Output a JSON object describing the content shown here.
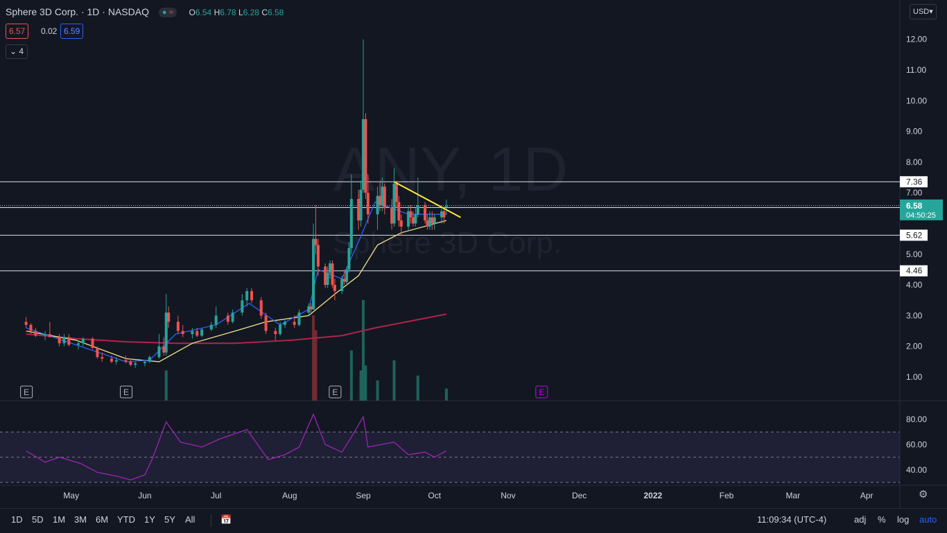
{
  "header": {
    "symbol_title": "Sphere 3D Corp. · 1D · NASDAQ",
    "ohlc": {
      "o_label": "O",
      "o": "6.54",
      "h_label": "H",
      "h": "6.78",
      "l_label": "L",
      "l": "6.28",
      "c_label": "C",
      "c": "6.58"
    },
    "bid": "6.57",
    "spread": "0.02",
    "ask": "6.59",
    "indicators_count": "4",
    "currency": "USD"
  },
  "watermark": {
    "ticker": "ANY, 1D",
    "name": "Sphere 3D Corp."
  },
  "colors": {
    "bg": "#131722",
    "up": "#26a69a",
    "down": "#ef5350",
    "ema_fast": "#2962ff",
    "ema_slow": "#f3e58a",
    "sma": "#b5224c",
    "trend": "#ffeb3b",
    "rsi": "#9c27b0",
    "earn": "#c400ff"
  },
  "chart_data": {
    "type": "candlestick",
    "y_axis_ticks": [
      "12.00",
      "11.00",
      "10.00",
      "9.00",
      "8.00",
      "7.00",
      "5.00",
      "4.00",
      "3.00",
      "2.00",
      "1.00"
    ],
    "x_axis_ticks": [
      "May",
      "Jun",
      "Jul",
      "Aug",
      "Sep",
      "Oct",
      "Nov",
      "Dec",
      "2022",
      "Feb",
      "Mar",
      "Apr"
    ],
    "ylim": [
      0,
      13
    ],
    "horizontal_levels": [
      {
        "value": 7.36,
        "label": "7.36"
      },
      {
        "value": 6.52,
        "label": "6.52"
      },
      {
        "value": 5.62,
        "label": "5.62"
      },
      {
        "value": 4.46,
        "label": "4.46"
      }
    ],
    "last_price": {
      "value": 6.58,
      "label": "6.58",
      "countdown": "04:50:25"
    },
    "trendline": {
      "start": {
        "date": "2021-09-14",
        "value": 7.36
      },
      "end": {
        "date": "2021-10-12",
        "value": 6.2
      }
    },
    "candles": [
      {
        "date": "2021-04-12",
        "o": 2.8,
        "h": 2.95,
        "l": 2.6,
        "c": 2.7
      },
      {
        "date": "2021-04-14",
        "o": 2.7,
        "h": 2.75,
        "l": 2.4,
        "c": 2.5
      },
      {
        "date": "2021-04-16",
        "o": 2.5,
        "h": 2.6,
        "l": 2.3,
        "c": 2.35
      },
      {
        "date": "2021-04-20",
        "o": 2.35,
        "h": 2.5,
        "l": 2.2,
        "c": 2.4
      },
      {
        "date": "2021-04-22",
        "o": 2.4,
        "h": 2.8,
        "l": 2.3,
        "c": 2.3
      },
      {
        "date": "2021-04-26",
        "o": 2.3,
        "h": 2.4,
        "l": 2.0,
        "c": 2.1
      },
      {
        "date": "2021-04-28",
        "o": 2.1,
        "h": 2.4,
        "l": 2.0,
        "c": 2.3
      },
      {
        "date": "2021-04-30",
        "o": 2.3,
        "h": 2.4,
        "l": 2.0,
        "c": 2.05
      },
      {
        "date": "2021-05-04",
        "o": 2.05,
        "h": 2.2,
        "l": 1.9,
        "c": 2.1
      },
      {
        "date": "2021-05-06",
        "o": 2.1,
        "h": 2.3,
        "l": 2.0,
        "c": 2.25
      },
      {
        "date": "2021-05-10",
        "o": 2.25,
        "h": 2.3,
        "l": 1.9,
        "c": 1.95
      },
      {
        "date": "2021-05-12",
        "o": 1.95,
        "h": 2.0,
        "l": 1.6,
        "c": 1.65
      },
      {
        "date": "2021-05-14",
        "o": 1.65,
        "h": 1.8,
        "l": 1.5,
        "c": 1.6
      },
      {
        "date": "2021-05-18",
        "o": 1.6,
        "h": 1.7,
        "l": 1.45,
        "c": 1.5
      },
      {
        "date": "2021-05-20",
        "o": 1.5,
        "h": 1.65,
        "l": 1.4,
        "c": 1.55
      },
      {
        "date": "2021-05-24",
        "o": 1.55,
        "h": 1.7,
        "l": 1.45,
        "c": 1.5
      },
      {
        "date": "2021-05-26",
        "o": 1.5,
        "h": 1.6,
        "l": 1.35,
        "c": 1.4
      },
      {
        "date": "2021-05-28",
        "o": 1.4,
        "h": 1.5,
        "l": 1.3,
        "c": 1.45
      },
      {
        "date": "2021-06-01",
        "o": 1.45,
        "h": 1.55,
        "l": 1.35,
        "c": 1.5
      },
      {
        "date": "2021-06-03",
        "o": 1.5,
        "h": 1.7,
        "l": 1.45,
        "c": 1.65
      },
      {
        "date": "2021-06-07",
        "o": 1.65,
        "h": 2.4,
        "l": 1.6,
        "c": 2.0
      },
      {
        "date": "2021-06-09",
        "o": 2.0,
        "h": 2.3,
        "l": 1.7,
        "c": 1.8
      },
      {
        "date": "2021-06-10",
        "o": 1.8,
        "h": 3.7,
        "l": 1.7,
        "c": 3.1
      },
      {
        "date": "2021-06-11",
        "o": 3.1,
        "h": 3.3,
        "l": 2.6,
        "c": 2.8
      },
      {
        "date": "2021-06-15",
        "o": 2.8,
        "h": 3.0,
        "l": 2.4,
        "c": 2.5
      },
      {
        "date": "2021-06-17",
        "o": 2.5,
        "h": 2.7,
        "l": 2.3,
        "c": 2.4
      },
      {
        "date": "2021-06-21",
        "o": 2.4,
        "h": 2.6,
        "l": 2.25,
        "c": 2.5
      },
      {
        "date": "2021-06-23",
        "o": 2.5,
        "h": 2.6,
        "l": 2.3,
        "c": 2.35
      },
      {
        "date": "2021-06-25",
        "o": 2.35,
        "h": 2.6,
        "l": 2.3,
        "c": 2.55
      },
      {
        "date": "2021-06-29",
        "o": 2.55,
        "h": 2.8,
        "l": 2.5,
        "c": 2.7
      },
      {
        "date": "2021-07-01",
        "o": 2.7,
        "h": 3.3,
        "l": 2.6,
        "c": 3.0
      },
      {
        "date": "2021-07-06",
        "o": 3.0,
        "h": 3.1,
        "l": 2.7,
        "c": 2.8
      },
      {
        "date": "2021-07-08",
        "o": 2.8,
        "h": 3.2,
        "l": 2.75,
        "c": 3.1
      },
      {
        "date": "2021-07-12",
        "o": 3.1,
        "h": 3.7,
        "l": 3.0,
        "c": 3.5
      },
      {
        "date": "2021-07-14",
        "o": 3.5,
        "h": 3.9,
        "l": 3.3,
        "c": 3.8
      },
      {
        "date": "2021-07-16",
        "o": 3.8,
        "h": 3.9,
        "l": 3.4,
        "c": 3.5
      },
      {
        "date": "2021-07-20",
        "o": 3.5,
        "h": 3.6,
        "l": 2.9,
        "c": 3.0
      },
      {
        "date": "2021-07-22",
        "o": 3.0,
        "h": 3.1,
        "l": 2.4,
        "c": 2.5
      },
      {
        "date": "2021-07-26",
        "o": 2.5,
        "h": 2.6,
        "l": 2.2,
        "c": 2.4
      },
      {
        "date": "2021-07-28",
        "o": 2.4,
        "h": 2.8,
        "l": 2.35,
        "c": 2.7
      },
      {
        "date": "2021-07-30",
        "o": 2.7,
        "h": 2.9,
        "l": 2.6,
        "c": 2.8
      },
      {
        "date": "2021-08-03",
        "o": 2.8,
        "h": 3.0,
        "l": 2.6,
        "c": 2.7
      },
      {
        "date": "2021-08-05",
        "o": 2.7,
        "h": 3.2,
        "l": 2.65,
        "c": 3.1
      },
      {
        "date": "2021-08-09",
        "o": 3.1,
        "h": 3.4,
        "l": 3.0,
        "c": 3.3
      },
      {
        "date": "2021-08-10",
        "o": 3.3,
        "h": 3.4,
        "l": 3.1,
        "c": 3.2
      },
      {
        "date": "2021-08-11",
        "o": 3.2,
        "h": 6.0,
        "l": 3.2,
        "c": 5.5
      },
      {
        "date": "2021-08-12",
        "o": 5.5,
        "h": 6.6,
        "l": 5.0,
        "c": 5.3
      },
      {
        "date": "2021-08-13",
        "o": 5.3,
        "h": 5.5,
        "l": 4.3,
        "c": 4.6
      },
      {
        "date": "2021-08-16",
        "o": 4.6,
        "h": 4.7,
        "l": 3.9,
        "c": 4.0
      },
      {
        "date": "2021-08-17",
        "o": 4.0,
        "h": 4.6,
        "l": 3.9,
        "c": 4.4
      },
      {
        "date": "2021-08-18",
        "o": 4.4,
        "h": 4.8,
        "l": 4.2,
        "c": 4.7
      },
      {
        "date": "2021-08-19",
        "o": 4.7,
        "h": 4.8,
        "l": 3.9,
        "c": 4.0
      },
      {
        "date": "2021-08-20",
        "o": 4.0,
        "h": 4.2,
        "l": 3.5,
        "c": 3.8
      },
      {
        "date": "2021-08-23",
        "o": 3.8,
        "h": 4.3,
        "l": 3.7,
        "c": 4.2
      },
      {
        "date": "2021-08-24",
        "o": 4.2,
        "h": 4.5,
        "l": 4.0,
        "c": 4.1
      },
      {
        "date": "2021-08-25",
        "o": 4.1,
        "h": 4.6,
        "l": 4.0,
        "c": 4.5
      },
      {
        "date": "2021-08-26",
        "o": 4.5,
        "h": 5.4,
        "l": 4.4,
        "c": 5.2
      },
      {
        "date": "2021-08-27",
        "o": 5.2,
        "h": 7.6,
        "l": 5.0,
        "c": 6.8
      },
      {
        "date": "2021-08-30",
        "o": 6.8,
        "h": 7.1,
        "l": 5.8,
        "c": 6.1
      },
      {
        "date": "2021-08-31",
        "o": 6.1,
        "h": 7.4,
        "l": 5.9,
        "c": 7.1
      },
      {
        "date": "2021-09-01",
        "o": 7.1,
        "h": 12.0,
        "l": 7.0,
        "c": 9.4
      },
      {
        "date": "2021-09-02",
        "o": 9.4,
        "h": 9.6,
        "l": 6.8,
        "c": 7.0
      },
      {
        "date": "2021-09-03",
        "o": 7.0,
        "h": 7.6,
        "l": 6.0,
        "c": 6.3
      },
      {
        "date": "2021-09-07",
        "o": 6.3,
        "h": 7.2,
        "l": 5.8,
        "c": 6.9
      },
      {
        "date": "2021-09-08",
        "o": 6.9,
        "h": 7.4,
        "l": 6.4,
        "c": 6.6
      },
      {
        "date": "2021-09-09",
        "o": 6.6,
        "h": 7.5,
        "l": 6.4,
        "c": 7.2
      },
      {
        "date": "2021-09-10",
        "o": 7.2,
        "h": 7.3,
        "l": 6.3,
        "c": 6.5
      },
      {
        "date": "2021-09-13",
        "o": 6.5,
        "h": 6.8,
        "l": 5.8,
        "c": 6.0
      },
      {
        "date": "2021-09-14",
        "o": 6.0,
        "h": 7.8,
        "l": 5.9,
        "c": 7.3
      },
      {
        "date": "2021-09-15",
        "o": 7.3,
        "h": 7.4,
        "l": 6.5,
        "c": 6.7
      },
      {
        "date": "2021-09-16",
        "o": 6.7,
        "h": 6.9,
        "l": 5.9,
        "c": 6.1
      },
      {
        "date": "2021-09-17",
        "o": 6.1,
        "h": 6.3,
        "l": 5.6,
        "c": 5.9
      },
      {
        "date": "2021-09-20",
        "o": 5.9,
        "h": 6.6,
        "l": 5.8,
        "c": 6.4
      },
      {
        "date": "2021-09-21",
        "o": 6.4,
        "h": 6.6,
        "l": 6.0,
        "c": 6.2
      },
      {
        "date": "2021-09-22",
        "o": 6.2,
        "h": 6.4,
        "l": 5.9,
        "c": 6.0
      },
      {
        "date": "2021-09-23",
        "o": 6.0,
        "h": 6.5,
        "l": 5.9,
        "c": 6.3
      },
      {
        "date": "2021-09-24",
        "o": 6.3,
        "h": 7.5,
        "l": 6.2,
        "c": 6.6
      },
      {
        "date": "2021-09-27",
        "o": 6.6,
        "h": 6.7,
        "l": 6.0,
        "c": 6.1
      },
      {
        "date": "2021-09-28",
        "o": 6.1,
        "h": 6.3,
        "l": 5.8,
        "c": 5.9
      },
      {
        "date": "2021-09-29",
        "o": 5.9,
        "h": 6.4,
        "l": 5.8,
        "c": 6.2
      },
      {
        "date": "2021-09-30",
        "o": 6.2,
        "h": 6.4,
        "l": 5.8,
        "c": 6.0
      },
      {
        "date": "2021-10-01",
        "o": 6.0,
        "h": 6.3,
        "l": 5.8,
        "c": 6.2
      },
      {
        "date": "2021-10-04",
        "o": 6.2,
        "h": 6.5,
        "l": 6.0,
        "c": 6.4
      },
      {
        "date": "2021-10-05",
        "o": 6.4,
        "h": 6.5,
        "l": 6.0,
        "c": 6.2
      },
      {
        "date": "2021-10-06",
        "o": 6.54,
        "h": 6.78,
        "l": 6.28,
        "c": 6.58
      }
    ],
    "ema_fast": [
      {
        "date": "2021-04-12",
        "v": 2.6
      },
      {
        "date": "2021-05-03",
        "v": 2.05
      },
      {
        "date": "2021-05-24",
        "v": 1.5
      },
      {
        "date": "2021-06-03",
        "v": 1.55
      },
      {
        "date": "2021-06-14",
        "v": 2.4
      },
      {
        "date": "2021-07-01",
        "v": 2.7
      },
      {
        "date": "2021-07-15",
        "v": 3.4
      },
      {
        "date": "2021-07-28",
        "v": 2.7
      },
      {
        "date": "2021-08-09",
        "v": 3.2
      },
      {
        "date": "2021-08-13",
        "v": 4.5
      },
      {
        "date": "2021-08-23",
        "v": 4.2
      },
      {
        "date": "2021-08-30",
        "v": 5.4
      },
      {
        "date": "2021-09-06",
        "v": 6.7
      },
      {
        "date": "2021-09-20",
        "v": 6.3
      },
      {
        "date": "2021-10-06",
        "v": 6.3
      }
    ],
    "ema_slow": [
      {
        "date": "2021-04-12",
        "v": 2.5
      },
      {
        "date": "2021-05-03",
        "v": 2.2
      },
      {
        "date": "2021-05-24",
        "v": 1.6
      },
      {
        "date": "2021-06-07",
        "v": 1.5
      },
      {
        "date": "2021-06-21",
        "v": 2.1
      },
      {
        "date": "2021-07-09",
        "v": 2.5
      },
      {
        "date": "2021-07-22",
        "v": 2.8
      },
      {
        "date": "2021-08-09",
        "v": 3.0
      },
      {
        "date": "2021-08-20",
        "v": 3.7
      },
      {
        "date": "2021-08-30",
        "v": 4.3
      },
      {
        "date": "2021-09-07",
        "v": 5.3
      },
      {
        "date": "2021-09-17",
        "v": 5.7
      },
      {
        "date": "2021-10-06",
        "v": 6.1
      }
    ],
    "sma_long": [
      {
        "date": "2021-04-12",
        "v": 2.4
      },
      {
        "date": "2021-05-03",
        "v": 2.25
      },
      {
        "date": "2021-05-24",
        "v": 2.15
      },
      {
        "date": "2021-06-14",
        "v": 2.1
      },
      {
        "date": "2021-07-09",
        "v": 2.1
      },
      {
        "date": "2021-08-02",
        "v": 2.2
      },
      {
        "date": "2021-08-23",
        "v": 2.35
      },
      {
        "date": "2021-09-06",
        "v": 2.6
      },
      {
        "date": "2021-10-06",
        "v": 3.05
      }
    ],
    "volume": [
      {
        "date": "2021-08-11",
        "v": 0.85
      },
      {
        "date": "2021-08-12",
        "v": 0.7
      },
      {
        "date": "2021-08-27",
        "v": 0.5
      },
      {
        "date": "2021-08-31",
        "v": 0.3
      },
      {
        "date": "2021-09-01",
        "v": 1.0
      },
      {
        "date": "2021-09-02",
        "v": 0.35
      },
      {
        "date": "2021-09-07",
        "v": 0.2
      },
      {
        "date": "2021-09-14",
        "v": 0.4
      },
      {
        "date": "2021-09-24",
        "v": 0.25
      },
      {
        "date": "2021-06-10",
        "v": 0.3
      },
      {
        "date": "2021-10-06",
        "v": 0.12
      }
    ],
    "earnings_markers": [
      {
        "date": "2021-04-12",
        "label": "E",
        "future": false
      },
      {
        "date": "2021-05-24",
        "label": "E",
        "future": false
      },
      {
        "date": "2021-08-20",
        "label": "E",
        "future": false
      },
      {
        "date": "2021-11-15",
        "label": "E",
        "future": true
      }
    ],
    "rsi": {
      "ticks": [
        "80.00",
        "60.00",
        "40.00"
      ],
      "upper": 70,
      "mid": 50,
      "lower": 30,
      "values": [
        {
          "date": "2021-04-12",
          "v": 55
        },
        {
          "date": "2021-04-20",
          "v": 46
        },
        {
          "date": "2021-04-26",
          "v": 50
        },
        {
          "date": "2021-05-05",
          "v": 45
        },
        {
          "date": "2021-05-12",
          "v": 38
        },
        {
          "date": "2021-05-20",
          "v": 35
        },
        {
          "date": "2021-05-26",
          "v": 32
        },
        {
          "date": "2021-06-01",
          "v": 36
        },
        {
          "date": "2021-06-04",
          "v": 48
        },
        {
          "date": "2021-06-10",
          "v": 78
        },
        {
          "date": "2021-06-16",
          "v": 62
        },
        {
          "date": "2021-06-25",
          "v": 58
        },
        {
          "date": "2021-07-02",
          "v": 64
        },
        {
          "date": "2021-07-14",
          "v": 72
        },
        {
          "date": "2021-07-23",
          "v": 48
        },
        {
          "date": "2021-07-30",
          "v": 52
        },
        {
          "date": "2021-08-05",
          "v": 58
        },
        {
          "date": "2021-08-11",
          "v": 84
        },
        {
          "date": "2021-08-16",
          "v": 60
        },
        {
          "date": "2021-08-23",
          "v": 54
        },
        {
          "date": "2021-08-27",
          "v": 66
        },
        {
          "date": "2021-09-01",
          "v": 82
        },
        {
          "date": "2021-09-03",
          "v": 58
        },
        {
          "date": "2021-09-14",
          "v": 62
        },
        {
          "date": "2021-09-20",
          "v": 52
        },
        {
          "date": "2021-09-27",
          "v": 54
        },
        {
          "date": "2021-10-01",
          "v": 50
        },
        {
          "date": "2021-10-06",
          "v": 55
        }
      ]
    }
  },
  "bottom_bar": {
    "ranges": [
      "1D",
      "5D",
      "1M",
      "3M",
      "6M",
      "YTD",
      "1Y",
      "5Y",
      "All"
    ],
    "time": "11:09:34 (UTC-4)",
    "adj": "adj",
    "pct": "%",
    "log": "log",
    "auto": "auto"
  }
}
